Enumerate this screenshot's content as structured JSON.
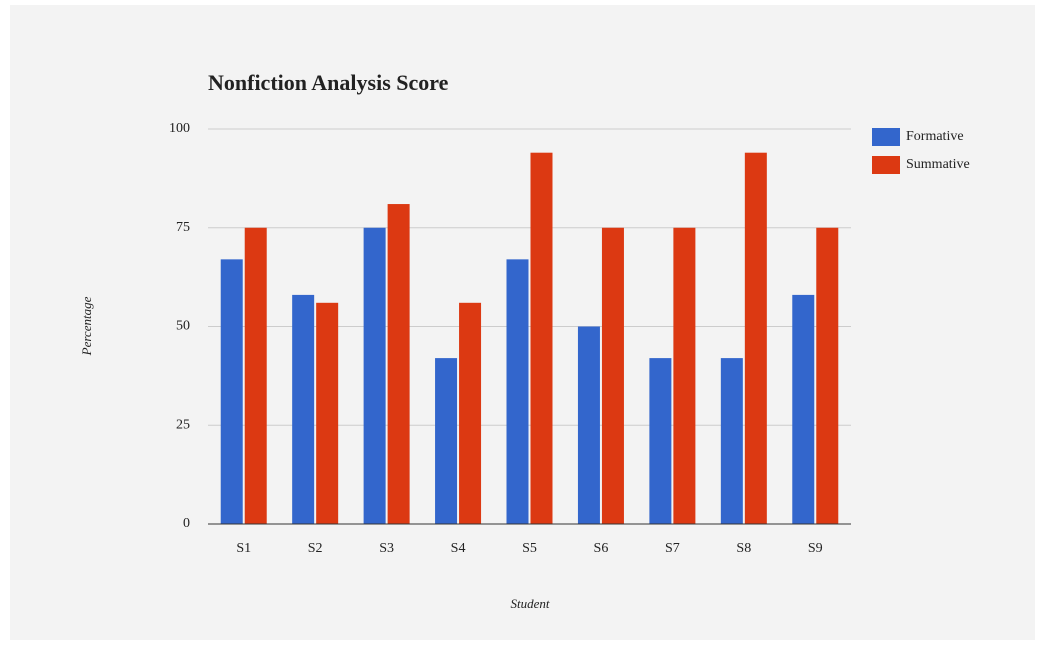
{
  "chart_data": {
    "type": "bar",
    "title": "Nonfiction Analysis Score",
    "x_label": "Student",
    "y_label": "Percentage",
    "categories": [
      "S1",
      "S2",
      "S3",
      "S4",
      "S5",
      "S6",
      "S7",
      "S8",
      "S9"
    ],
    "series": [
      {
        "name": "Formative",
        "color": "#3366cc",
        "values": [
          67,
          58,
          75,
          42,
          67,
          50,
          42,
          42,
          58
        ]
      },
      {
        "name": "Summative",
        "color": "#dc3912",
        "values": [
          75,
          56,
          81,
          56,
          94,
          75,
          75,
          94,
          75
        ]
      }
    ],
    "ylim": [
      0,
      100
    ],
    "yticks": [
      0,
      25,
      50,
      75,
      100
    ],
    "grid": true,
    "legend": "right"
  }
}
